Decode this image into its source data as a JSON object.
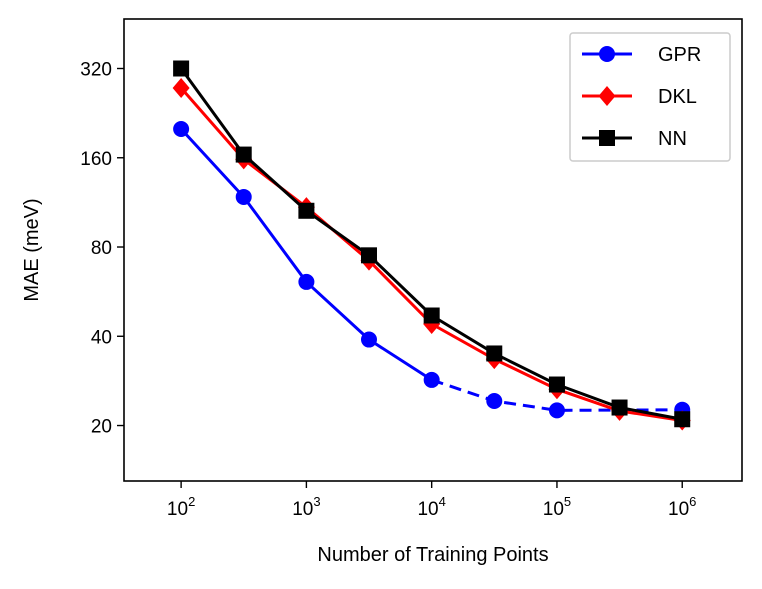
{
  "chart_data": {
    "type": "line",
    "xlabel": "Number of Training Points",
    "ylabel": "MAE (meV)",
    "xscale": "log",
    "yscale": "log",
    "xlim": [
      35,
      3000000
    ],
    "ylim": [
      13,
      470
    ],
    "x_ticks": [
      {
        "value": 100,
        "base": "10",
        "exp": "2"
      },
      {
        "value": 1000,
        "base": "10",
        "exp": "3"
      },
      {
        "value": 10000,
        "base": "10",
        "exp": "4"
      },
      {
        "value": 100000,
        "base": "10",
        "exp": "5"
      },
      {
        "value": 1000000,
        "base": "10",
        "exp": "6"
      }
    ],
    "y_ticks": [
      {
        "value": 20,
        "label": "20"
      },
      {
        "value": 40,
        "label": "40"
      },
      {
        "value": 80,
        "label": "80"
      },
      {
        "value": 160,
        "label": "160"
      },
      {
        "value": 320,
        "label": "320"
      }
    ],
    "grid": false,
    "legend_position": "top-right",
    "series": [
      {
        "name": "GPR",
        "color": "#0000ff",
        "marker": "circle",
        "x": [
          100,
          316,
          1000,
          3160,
          10000,
          31600,
          100000,
          1000000
        ],
        "y": [
          200,
          118,
          61,
          39,
          28.5,
          24.2,
          22.5,
          22.6
        ],
        "solid_until_index": 4
      },
      {
        "name": "DKL",
        "color": "#ff0000",
        "marker": "diamond",
        "x": [
          100,
          316,
          1000,
          3160,
          10000,
          31600,
          100000,
          316000,
          1000000
        ],
        "y": [
          275,
          158,
          109,
          72,
          44,
          33.5,
          26.5,
          22.4,
          20.8
        ],
        "solid_until_index": 8
      },
      {
        "name": "NN",
        "color": "#000000",
        "marker": "square",
        "x": [
          100,
          316,
          1000,
          3160,
          10000,
          31600,
          100000,
          316000,
          1000000
        ],
        "y": [
          320,
          164,
          106,
          75,
          47,
          35,
          27.5,
          23,
          21
        ],
        "solid_until_index": 8
      }
    ]
  }
}
